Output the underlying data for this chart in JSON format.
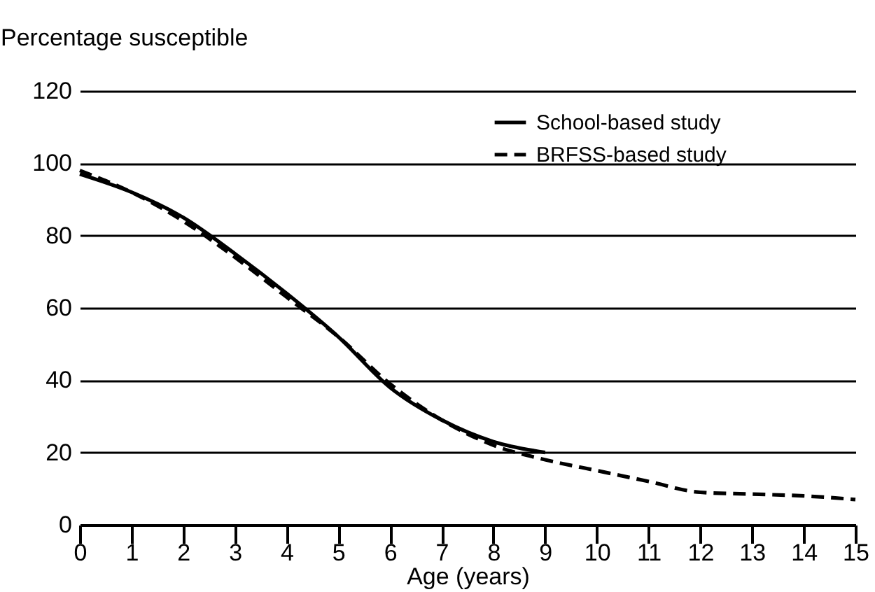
{
  "chart_data": {
    "type": "line",
    "ylabel": "Percentage susceptible",
    "xlabel": "Age (years)",
    "x": [
      0,
      1,
      2,
      3,
      4,
      5,
      6,
      7,
      8,
      9,
      10,
      11,
      12,
      13,
      14,
      15
    ],
    "series": [
      {
        "name": "School-based study",
        "color": "#000000",
        "line_style": "solid",
        "x": [
          0,
          1,
          2,
          3,
          4,
          5,
          6,
          7,
          8,
          9
        ],
        "values": [
          97,
          92,
          85,
          75,
          64,
          52,
          38,
          29,
          23,
          20
        ]
      },
      {
        "name": "BRFSS-based study",
        "color": "#000000",
        "line_style": "dashed",
        "values": [
          98,
          92,
          84,
          74,
          63,
          52,
          39,
          29,
          22,
          18,
          15,
          12,
          9,
          8.5,
          8,
          7
        ]
      }
    ],
    "xlim": [
      0,
      15
    ],
    "xticks": [
      0,
      1,
      2,
      3,
      4,
      5,
      6,
      7,
      8,
      9,
      10,
      11,
      12,
      13,
      14,
      15
    ],
    "ylim": [
      0,
      120
    ],
    "yticks": [
      0,
      20,
      40,
      60,
      80,
      100,
      120
    ],
    "grid": "y",
    "legend": "top right",
    "marker": "none"
  }
}
